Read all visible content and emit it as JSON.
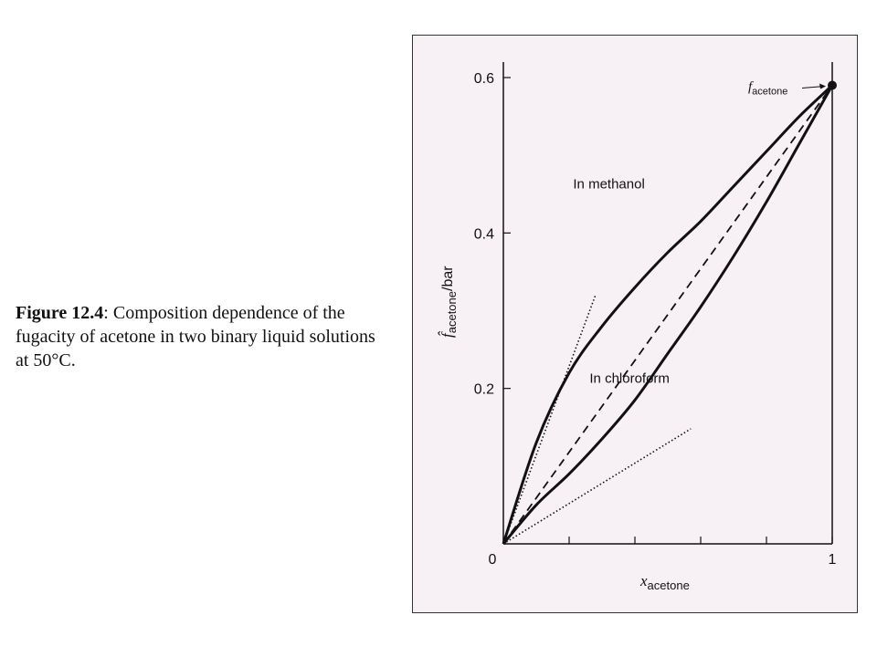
{
  "caption": {
    "label": "Figure 12.4",
    "text": ": Composition dependence of the fugacity of acetone in two binary liquid solutions at 50°C."
  },
  "chart_data": {
    "type": "line",
    "title": "",
    "xlabel": {
      "main": "x",
      "sub": "acetone"
    },
    "ylabel": {
      "main": "f̂",
      "sub": "acetone",
      "unit": "/bar"
    },
    "xlim": [
      0,
      1
    ],
    "ylim": [
      0,
      0.6
    ],
    "x_ticks": [
      0,
      0.2,
      0.4,
      0.6,
      0.8,
      1.0
    ],
    "x_tick_labels": [
      {
        "value": 0,
        "label": "0"
      },
      {
        "value": 1,
        "label": "1"
      }
    ],
    "y_ticks": [
      0,
      0.2,
      0.4,
      0.6
    ],
    "y_tick_labels": [
      {
        "value": 0,
        "label": "0"
      },
      {
        "value": 0.2,
        "label": "0.2"
      },
      {
        "value": 0.4,
        "label": "0.4"
      },
      {
        "value": 0.6,
        "label": "0.6"
      }
    ],
    "grid": false,
    "series": [
      {
        "name": "In methanol",
        "style": "solid",
        "x": [
          0,
          0.1,
          0.2,
          0.3,
          0.4,
          0.5,
          0.6,
          0.7,
          0.8,
          0.9,
          1.0
        ],
        "y": [
          0,
          0.13,
          0.22,
          0.28,
          0.33,
          0.375,
          0.415,
          0.46,
          0.505,
          0.55,
          0.59
        ]
      },
      {
        "name": "In chloroform",
        "style": "solid",
        "x": [
          0,
          0.1,
          0.2,
          0.3,
          0.4,
          0.5,
          0.6,
          0.7,
          0.8,
          0.9,
          1.0
        ],
        "y": [
          0,
          0.05,
          0.09,
          0.135,
          0.185,
          0.245,
          0.305,
          0.37,
          0.44,
          0.515,
          0.59
        ]
      },
      {
        "style": "dashed",
        "x": [
          0,
          1.0
        ],
        "y": [
          0,
          0.59
        ]
      },
      {
        "style": "dotted",
        "x": [
          0,
          0.28
        ],
        "y": [
          0,
          0.32
        ]
      },
      {
        "style": "dotted",
        "x": [
          0,
          0.57
        ],
        "y": [
          0,
          0.148
        ]
      }
    ],
    "annotations": [
      {
        "text": "In methanol",
        "x": 0.44,
        "y": 0.455
      },
      {
        "text": "In chloroform",
        "x": 0.49,
        "y": 0.205
      },
      {
        "main": "f",
        "sub": "acetone",
        "x": 1.0,
        "y": 0.59,
        "marker": "dot",
        "arrow": true
      }
    ],
    "colors": {
      "line": "#111111",
      "background": "#f7f0f5"
    }
  }
}
